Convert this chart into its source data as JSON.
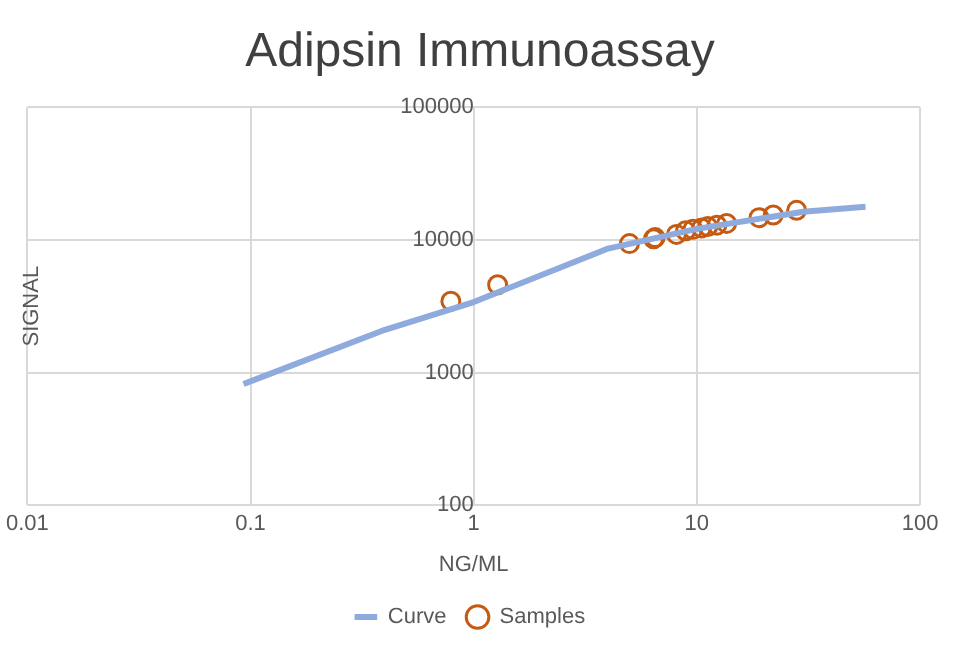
{
  "chart_data": {
    "type": "scatter",
    "title": "Adipsin Immunoassay",
    "xlabel": "NG/ML",
    "ylabel": "SIGNAL",
    "log": "xy",
    "grid": true,
    "legend": "bottom",
    "xlim": [
      0.01,
      100
    ],
    "xticks": [
      0.01,
      0.1,
      1,
      10,
      100
    ],
    "ylim": [
      100,
      100000
    ],
    "yticks": [
      100,
      1000,
      10000,
      100000
    ],
    "series": [
      {
        "name": "Curve",
        "type": "line",
        "color": "#8faadc",
        "marker": "none",
        "x": [
          0.093,
          0.4,
          1,
          4,
          10,
          30,
          57
        ],
        "values": [
          820,
          2100,
          3400,
          8600,
          12100,
          16300,
          17800
        ]
      },
      {
        "name": "Samples",
        "type": "scatter",
        "color": "#c55a11",
        "marker": "circle",
        "x": [
          0.79,
          1.28,
          4.99,
          6.4,
          6.5,
          8.1,
          8.9,
          9.6,
          10.5,
          11.2,
          12.3,
          13.6,
          19,
          22,
          28
        ],
        "values": [
          3450,
          4590,
          9370,
          10200,
          10400,
          11000,
          11700,
          12000,
          12300,
          12600,
          12900,
          13300,
          14700,
          15400,
          16700
        ]
      }
    ]
  }
}
